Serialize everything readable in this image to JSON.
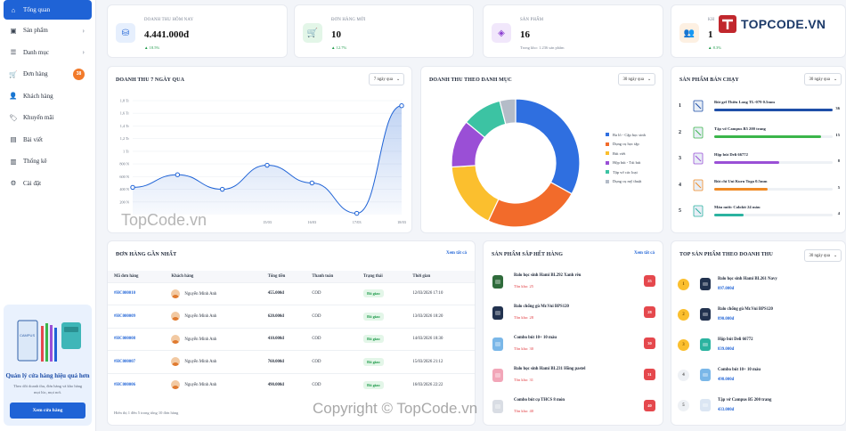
{
  "sidebar": {
    "items": [
      {
        "label": "Tổng quan",
        "icon": "home-icon",
        "active": true
      },
      {
        "label": "Sản phẩm",
        "icon": "box-icon",
        "chevron": true
      },
      {
        "label": "Danh mục",
        "icon": "list-icon",
        "chevron": true
      },
      {
        "label": "Đơn hàng",
        "icon": "cart-icon",
        "badge": "38"
      },
      {
        "label": "Khách hàng",
        "icon": "user-icon"
      },
      {
        "label": "Khuyến mãi",
        "icon": "tag-icon"
      },
      {
        "label": "Bài viết",
        "icon": "article-icon"
      },
      {
        "label": "Thống kê",
        "icon": "chart-icon"
      },
      {
        "label": "Cài đặt",
        "icon": "gear-icon"
      }
    ],
    "promo": {
      "title": "Quản lý cửa hàng hiệu quả hơn",
      "text": "Theo dõi doanh thu, đơn hàng và kho hàng mọi lúc, mọi nơi.",
      "button": "Xem cửa hàng",
      "art_label": "CAMPUS"
    }
  },
  "kpis": [
    {
      "label": "DOANH THU HÔM NAY",
      "value": "4.441.000đ",
      "trend": "▲ 18.5%",
      "color": "#1f63d6",
      "bg": "#e6effd"
    },
    {
      "label": "ĐƠN HÀNG MỚI",
      "value": "10",
      "trend": "▲ 12.7%",
      "color": "#1e9a4a",
      "bg": "#e3f6e8"
    },
    {
      "label": "SẢN PHẨM",
      "value": "16",
      "trend": "Trong kho: 1.236 sản phẩm",
      "color": "#8b3fd1",
      "bg": "#f1e7fb"
    },
    {
      "label": "KH",
      "value": "1",
      "trend": "▲ 8.3%",
      "color": "#f08a24",
      "bg": "#fdf0e2"
    }
  ],
  "revenue7": {
    "title": "DOANH THU 7 NGÀY QUA",
    "select": "7 ngày qua"
  },
  "category": {
    "title": "DOANH THU THEO DANH MỤC",
    "select": "30 ngày qua"
  },
  "chart_data": [
    {
      "type": "area",
      "title": "DOANH THU 7 NGÀY QUA",
      "x": [
        "",
        "",
        "",
        "15/03",
        "16/03",
        "17/03",
        "18/03"
      ],
      "values": [
        430000,
        630000,
        400000,
        780000,
        500000,
        20000,
        1720000
      ],
      "y_ticks": [
        "200 N",
        "400 N",
        "600 N",
        "800 N",
        "1 Tr",
        "1,2 Tr",
        "1,4 Tr",
        "1,6 Tr",
        "1,8 Tr"
      ],
      "ylim": [
        0,
        1800000
      ],
      "grid": true,
      "color": "#1f63d6"
    },
    {
      "type": "pie",
      "title": "DOANH THU THEO DANH MỤC",
      "donut": true,
      "legend_position": "right",
      "series": [
        {
          "name": "Ba lô - Cặp học sinh",
          "value": 33,
          "color": "#2f6fe0"
        },
        {
          "name": "Dụng cụ học tập",
          "value": 24,
          "color": "#f26b2b"
        },
        {
          "name": "Bút viết",
          "value": 17,
          "color": "#fbbf2e"
        },
        {
          "name": "Hộp bút - Túi bút",
          "value": 12,
          "color": "#9a4fd6"
        },
        {
          "name": "Tập vở các loại",
          "value": 10,
          "color": "#3cc3a3"
        },
        {
          "name": "Dụng cụ mỹ thuật",
          "value": 4,
          "color": "#b4bcc8"
        }
      ]
    }
  ],
  "best": {
    "title": "SẢN PHẨM BÁN CHẠY",
    "select": "30 ngày qua",
    "items": [
      {
        "rank": "1",
        "name": "Bút gel Thiên Long TL-079 0.5mm",
        "count": "36",
        "fill": 1.0,
        "color": "#1f4fa8"
      },
      {
        "rank": "2",
        "name": "Tập vở Campus B5 200 trang",
        "count": "15",
        "fill": 0.9,
        "color": "#3bb54a"
      },
      {
        "rank": "3",
        "name": "Hộp bút Deli 66772",
        "count": "8",
        "fill": 0.55,
        "color": "#9a4fd6"
      },
      {
        "rank": "4",
        "name": "Bút chì Uni Kuru Toga 0.5mm",
        "count": "5",
        "fill": 0.45,
        "color": "#f08a24"
      },
      {
        "rank": "5",
        "name": "Màu nước Colokit 24 màu",
        "count": "4",
        "fill": 0.25,
        "color": "#2bb3a0"
      }
    ]
  },
  "orders": {
    "title": "ĐƠN HÀNG GẦN NHẤT",
    "link": "Xem tất cả",
    "headers": [
      "Mã đơn hàng",
      "Khách hàng",
      "Tổng tiền",
      "Thanh toán",
      "Trạng thái",
      "Thời gian"
    ],
    "rows": [
      {
        "code": "#HC000010",
        "customer": "Nguyễn Minh Anh",
        "total": "455.000đ",
        "pay": "COD",
        "status": "Đã giao",
        "time": "12/03/2026 17:10"
      },
      {
        "code": "#HC000009",
        "customer": "Nguyễn Minh Anh",
        "total": "620.000đ",
        "pay": "COD",
        "status": "Đã giao",
        "time": "13/03/2026 18:20"
      },
      {
        "code": "#HC000008",
        "customer": "Nguyễn Minh Anh",
        "total": "410.000đ",
        "pay": "COD",
        "status": "Đã giao",
        "time": "14/03/2026 18:30"
      },
      {
        "code": "#HC000007",
        "customer": "Nguyễn Minh Anh",
        "total": "760.000đ",
        "pay": "COD",
        "status": "Đã giao",
        "time": "15/03/2026 21:12"
      },
      {
        "code": "#HC000006",
        "customer": "Nguyễn Minh Anh",
        "total": "490.000đ",
        "pay": "COD",
        "status": "Đã giao",
        "time": "16/03/2026 22:22"
      }
    ],
    "footer": "Hiển thị 1 đến 5 trong tổng 10 đơn hàng"
  },
  "lowstock": {
    "title": "SẢN PHẨM SẮP HẾT HÀNG",
    "link": "Xem tất cả",
    "items": [
      {
        "name": "Balo học sinh Hami BL292 Xanh rêu",
        "sub": "Tồn kho: 25",
        "qty": "25",
        "thumb": "#2f6b3b"
      },
      {
        "name": "Balo chống gù Mr.Vui BPS120",
        "sub": "Tồn kho: 28",
        "qty": "28",
        "thumb": "#22324f"
      },
      {
        "name": "Combo bút 10+ 10 màu",
        "sub": "Tồn kho: 30",
        "qty": "30",
        "thumb": "#7ab7e8"
      },
      {
        "name": "Balo học sinh Hami BL231 Hồng pastel",
        "sub": "Tồn kho: 31",
        "qty": "31",
        "thumb": "#f2a6b8"
      },
      {
        "name": "Combo bút cụ THCS 8 món",
        "sub": "Tồn kho: 40",
        "qty": "40",
        "thumb": "#d9dde4"
      }
    ]
  },
  "toprev": {
    "title": "TOP SẢN PHẨM THEO DOANH THU",
    "select": "30 ngày qua",
    "items": [
      {
        "rank": "1",
        "name": "Balo học sinh Hami BL261 Navy",
        "price": "897.000đ",
        "medal": "#fbbf2e",
        "thumb": "#22324f"
      },
      {
        "rank": "2",
        "name": "Balo chống gù Mr.Vui BPS120",
        "price": "890.000đ",
        "medal": "#fbbf2e",
        "thumb": "#22324f"
      },
      {
        "rank": "3",
        "name": "Hộp bút Deli 66772",
        "price": "839.000đ",
        "medal": "#fbbf2e",
        "thumb": "#2bb3a0"
      },
      {
        "rank": "4",
        "name": "Combo bút 10+ 10 màu",
        "price": "498.000đ",
        "medal": "#eef1f5",
        "thumb": "#7ab7e8"
      },
      {
        "rank": "5",
        "name": "Tập vở Campus B5 200 trang",
        "price": "433.000đ",
        "medal": "#eef1f5",
        "thumb": "#dbe6f3"
      }
    ]
  },
  "watermarks": {
    "logo": "TOPCODE.VN",
    "wm1": "TopCode.vn",
    "wm2": "Copyright © TopCode.vn"
  }
}
